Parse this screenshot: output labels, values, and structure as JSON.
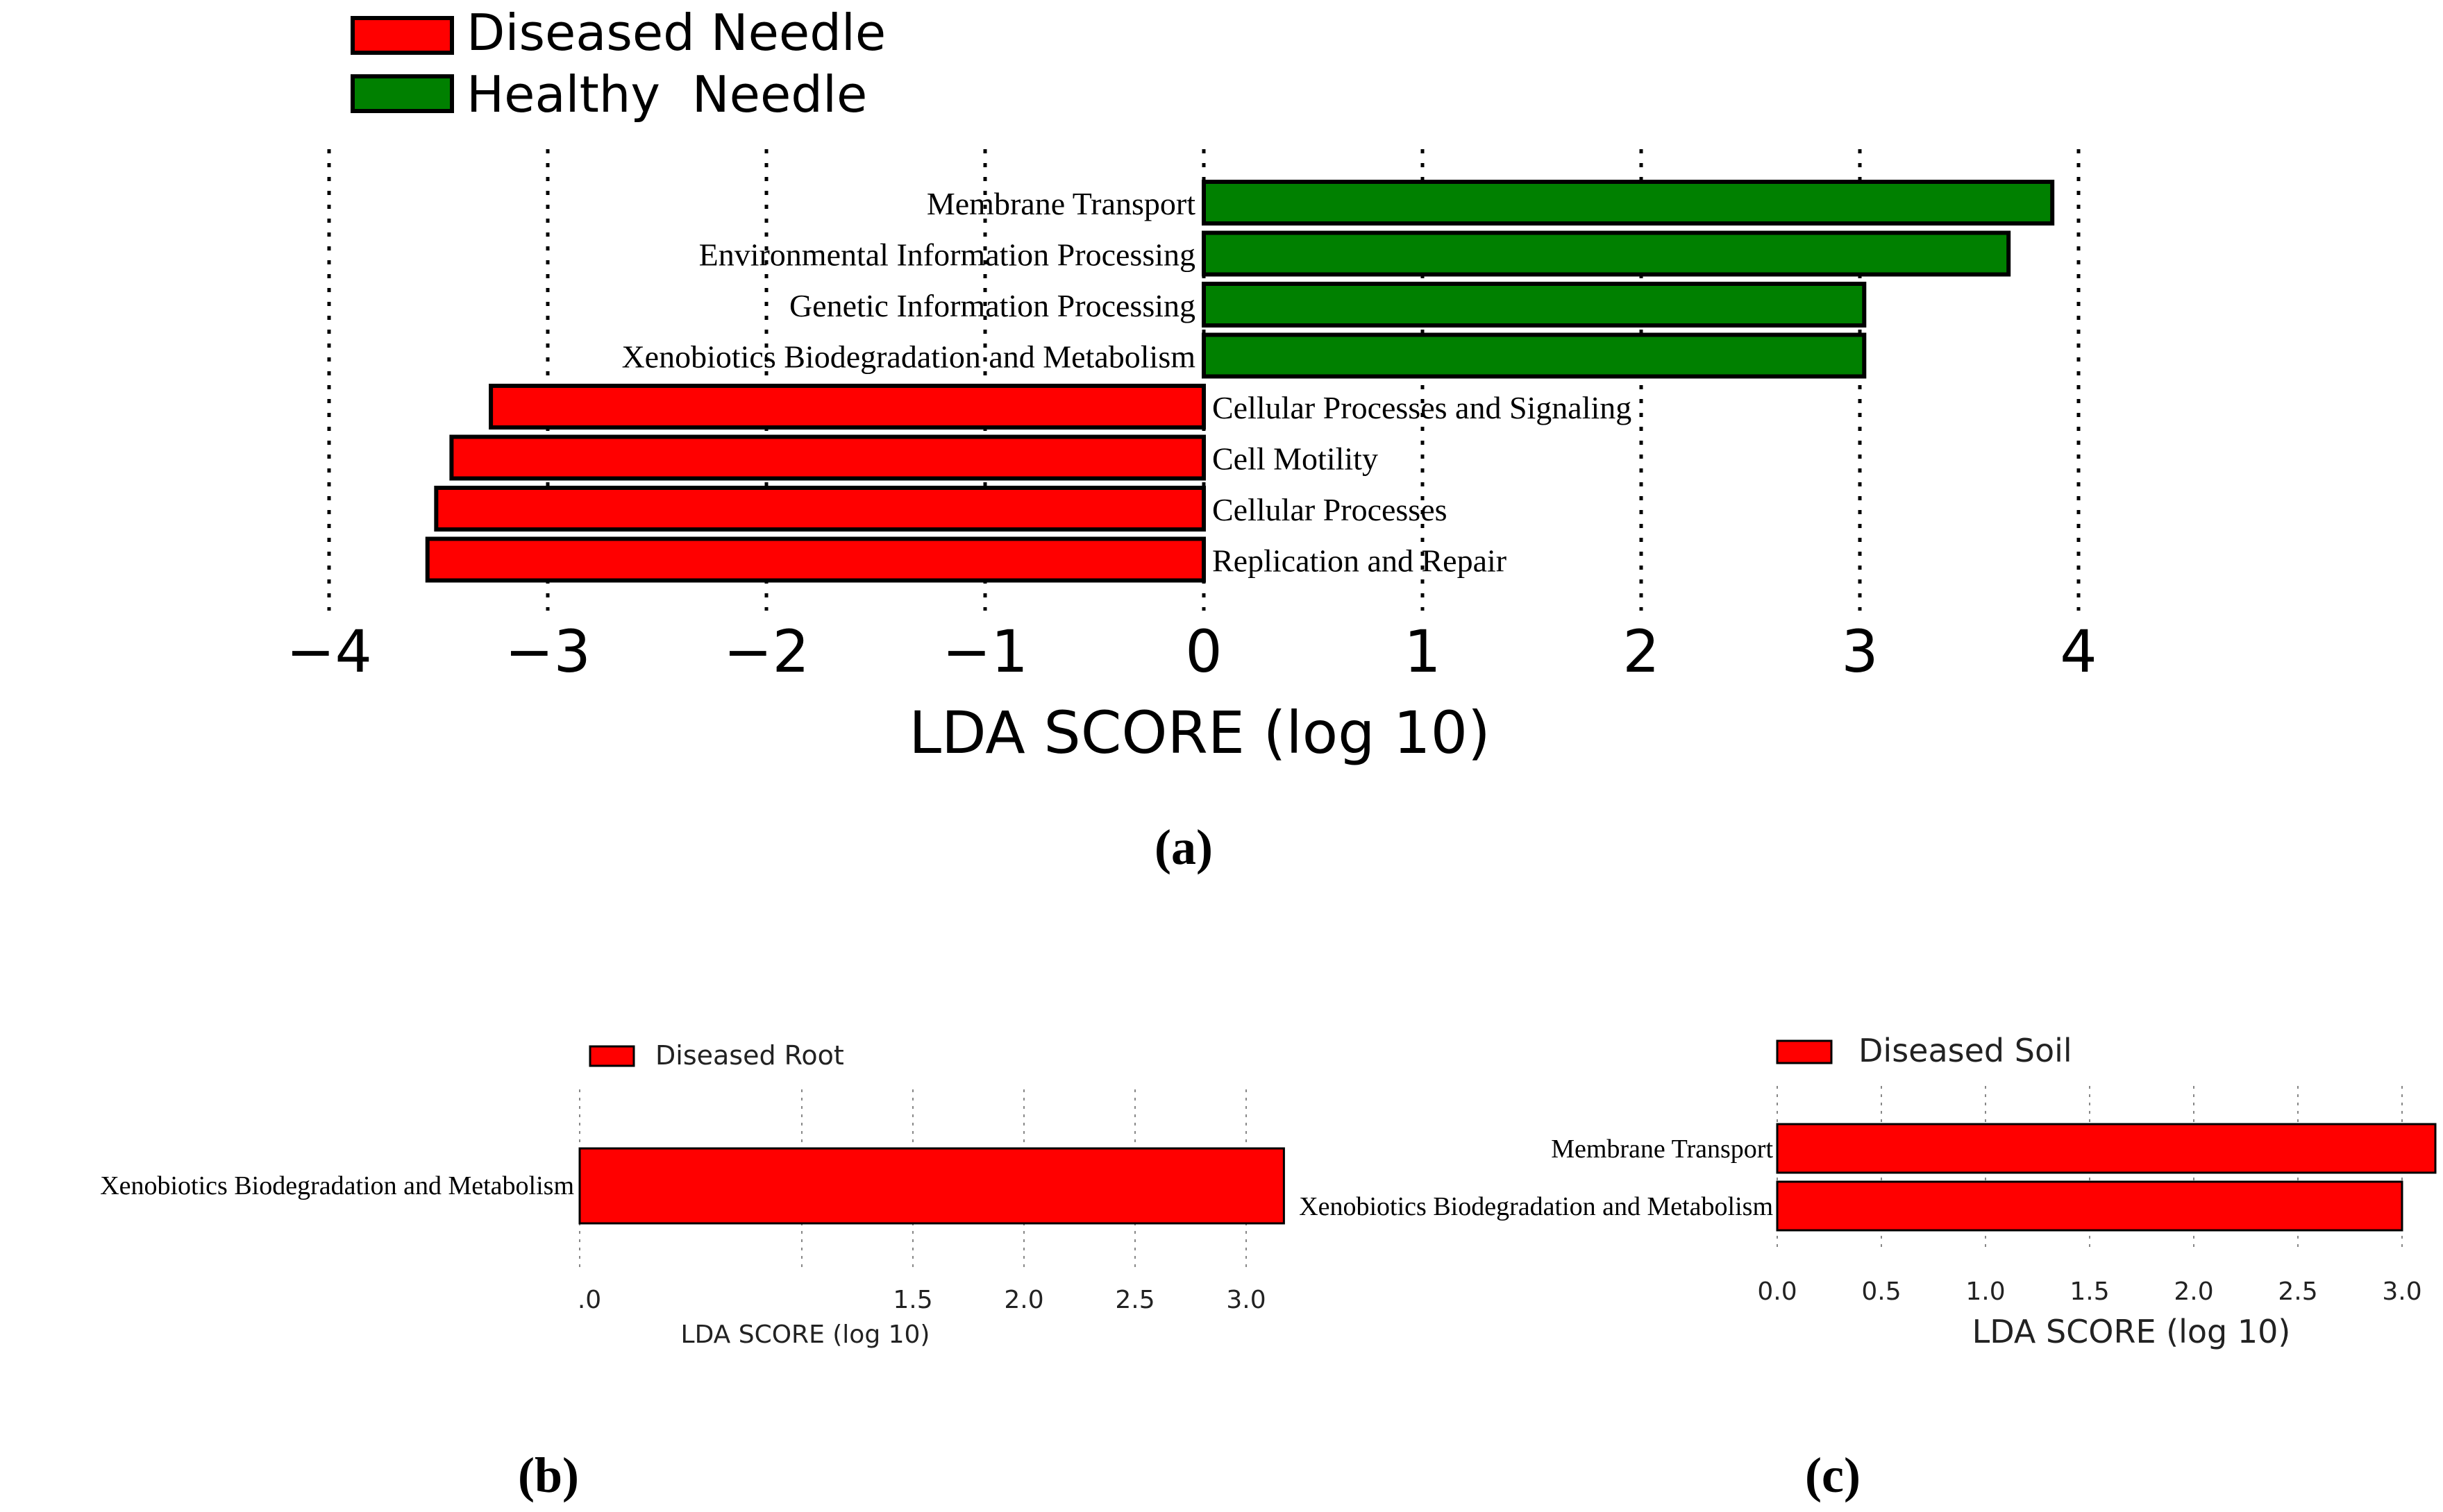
{
  "chart_data": [
    {
      "panel": "a",
      "panel_label": "(a)",
      "type": "bar",
      "orientation": "horizontal",
      "legend": [
        {
          "name": "Diseased Needle",
          "color": "#ff0000"
        },
        {
          "name": "Healthy  Needle",
          "color": "#008000"
        }
      ],
      "categories": [
        "Membrane Transport",
        "Environmental Information Processing",
        "Genetic Information Processing",
        "Xenobiotics Biodegradation and Metabolism",
        "Cellular Processes and Signaling",
        "Cell Motility",
        "Cellular Processes",
        "Replication and Repair"
      ],
      "values": [
        3.88,
        3.68,
        3.02,
        3.02,
        -3.26,
        -3.44,
        -3.51,
        -3.55
      ],
      "groups": [
        "Healthy  Needle",
        "Healthy  Needle",
        "Healthy  Needle",
        "Healthy  Needle",
        "Diseased Needle",
        "Diseased Needle",
        "Diseased Needle",
        "Diseased Needle"
      ],
      "xlabel": "LDA SCORE (log 10)",
      "xlim": [
        -4,
        4
      ],
      "xticks": [
        -4,
        -3,
        -2,
        -1,
        0,
        1,
        2,
        3,
        4
      ],
      "xtick_labels": [
        "−4",
        "−3",
        "−2",
        "−1",
        "0",
        "1",
        "2",
        "3",
        "4"
      ]
    },
    {
      "panel": "b",
      "panel_label": "(b)",
      "type": "bar",
      "orientation": "horizontal",
      "legend": [
        {
          "name": "Diseased Root",
          "color": "#ff0000"
        }
      ],
      "categories": [
        "Xenobiotics Biodegradation and Metabolism"
      ],
      "values": [
        3.17
      ],
      "xlabel": "LDA SCORE (log 10)",
      "xlim": [
        0,
        3.2
      ],
      "xticks": [
        0,
        1.5,
        2.0,
        2.5,
        3.0
      ],
      "xtick_labels": [
        ".0",
        "1.5",
        "2.0",
        "2.5",
        "3.0"
      ],
      "grid_positions": [
        0,
        1.0,
        1.5,
        2.0,
        2.5,
        3.0
      ]
    },
    {
      "panel": "c",
      "panel_label": "(c)",
      "type": "bar",
      "orientation": "horizontal",
      "legend": [
        {
          "name": "Diseased Soil",
          "color": "#ff0000"
        }
      ],
      "categories": [
        "Membrane Transport",
        "Xenobiotics Biodegradation and Metabolism"
      ],
      "values": [
        3.16,
        3.0
      ],
      "xlabel": "LDA SCORE (log 10)",
      "xlim": [
        0,
        3.15
      ],
      "xticks": [
        0.0,
        0.5,
        1.0,
        1.5,
        2.0,
        2.5,
        3.0
      ],
      "xtick_labels": [
        "0.0",
        "0.5",
        "1.0",
        "1.5",
        "2.0",
        "2.5",
        "3.0"
      ]
    }
  ]
}
